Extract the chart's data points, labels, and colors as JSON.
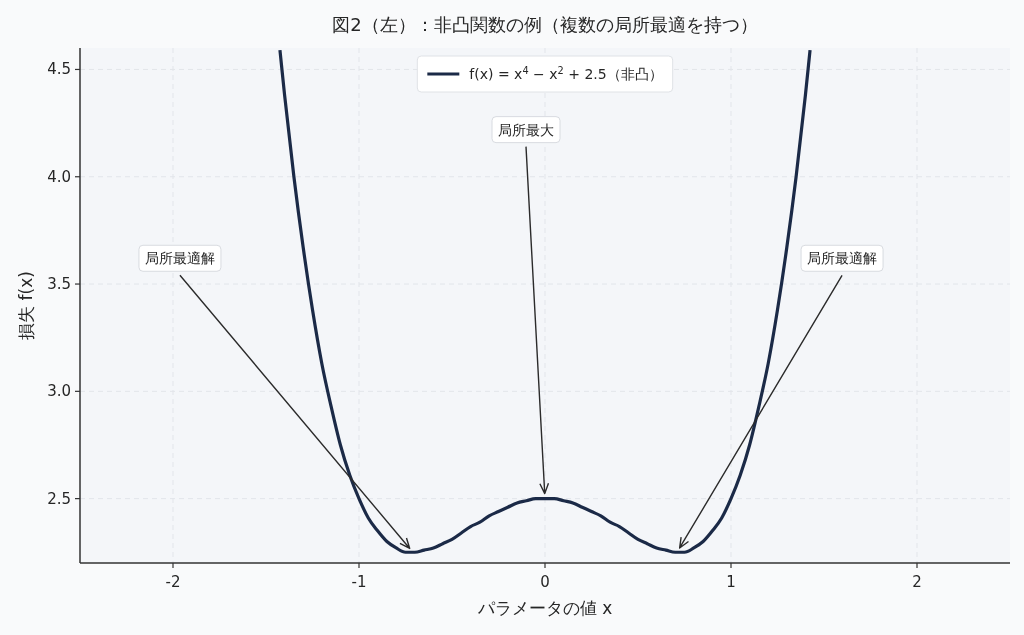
{
  "chart_data": {
    "type": "line",
    "title": "図2（左）：非凸関数の例（複数の局所最適を持つ）",
    "xlabel": "パラメータの値 x",
    "ylabel": "損失 f(x)",
    "x": [
      -1.425,
      -1.4,
      -1.35,
      -1.3,
      -1.25,
      -1.2,
      -1.15,
      -1.1,
      -1.05,
      -1.0,
      -0.95,
      -0.9,
      -0.85,
      -0.8,
      -0.75,
      -0.7,
      -0.65,
      -0.6,
      -0.55,
      -0.5,
      -0.45,
      -0.4,
      -0.35,
      -0.3,
      -0.25,
      -0.2,
      -0.15,
      -0.1,
      -0.05,
      0,
      0.05,
      0.1,
      0.15,
      0.2,
      0.25,
      0.3,
      0.35,
      0.4,
      0.45,
      0.5,
      0.55,
      0.6,
      0.65,
      0.7,
      0.75,
      0.8,
      0.85,
      0.9,
      0.95,
      1.0,
      1.05,
      1.1,
      1.15,
      1.2,
      1.25,
      1.3,
      1.35,
      1.4,
      1.425
    ],
    "series": [
      {
        "name": "f(x) = x$^{4}$ − x$^{2}$ + 2.5（非凸）",
        "color": "#1b2a47",
        "values": [
          4.59,
          4.38,
          4.0,
          3.67,
          3.38,
          3.13,
          2.93,
          2.75,
          2.61,
          2.5,
          2.41,
          2.35,
          2.3,
          2.27,
          2.25,
          2.25,
          2.26,
          2.27,
          2.29,
          2.31,
          2.34,
          2.37,
          2.39,
          2.42,
          2.44,
          2.46,
          2.48,
          2.49,
          2.5,
          2.5,
          2.5,
          2.49,
          2.48,
          2.46,
          2.44,
          2.42,
          2.39,
          2.37,
          2.34,
          2.31,
          2.29,
          2.27,
          2.26,
          2.25,
          2.25,
          2.27,
          2.3,
          2.35,
          2.41,
          2.5,
          2.61,
          2.75,
          2.93,
          3.13,
          3.38,
          3.67,
          4.0,
          4.38,
          4.59
        ]
      }
    ],
    "xlim": [
      -2.5,
      2.5
    ],
    "ylim": [
      2.2,
      4.6
    ],
    "xticks": [
      -2,
      -1,
      0,
      1,
      2
    ],
    "yticks": [
      2.5,
      {
        "value": 3,
        "label": "3.0"
      },
      3.5,
      {
        "value": 4,
        "label": "4.0"
      },
      4.5
    ],
    "grid": true,
    "legend": "top",
    "annotations": [
      {
        "text": "局所最適解",
        "x": -0.71,
        "y": 2.25
      },
      {
        "text": "局所最大",
        "x": 0,
        "y": 2.5
      },
      {
        "text": "局所最適解",
        "x": 0.71,
        "y": 2.25
      }
    ]
  }
}
